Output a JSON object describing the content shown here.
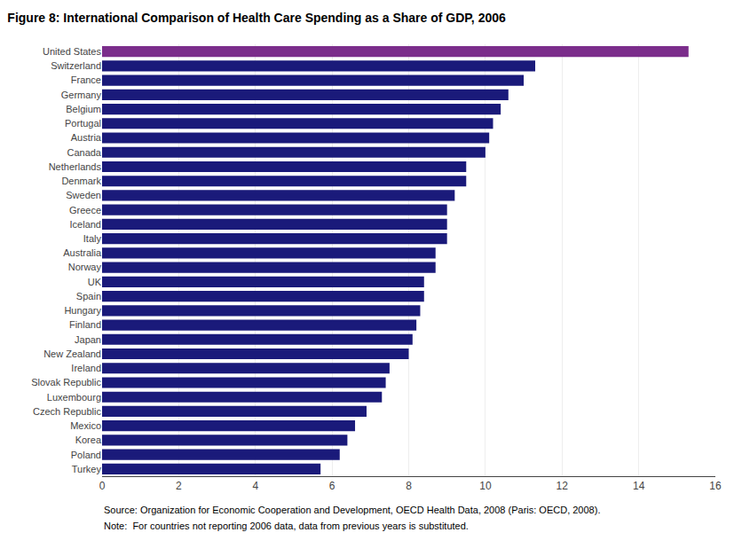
{
  "chart_data": {
    "type": "bar",
    "orientation": "horizontal",
    "title": "Figure 8: International Comparison of Health Care Spending as a Share of GDP, 2006",
    "categories": [
      "United States",
      "Switzerland",
      "France",
      "Germany",
      "Belgium",
      "Portugal",
      "Austria",
      "Canada",
      "Netherlands",
      "Denmark",
      "Sweden",
      "Greece",
      "Iceland",
      "Italy",
      "Australia",
      "Norway",
      "UK",
      "Spain",
      "Hungary",
      "Finland",
      "Japan",
      "New Zealand",
      "Ireland",
      "Slovak Republic",
      "Luxembourg",
      "Czech Republic",
      "Mexico",
      "Korea",
      "Poland",
      "Turkey"
    ],
    "values": [
      15.3,
      11.3,
      11.0,
      10.6,
      10.4,
      10.2,
      10.1,
      10.0,
      9.5,
      9.5,
      9.2,
      9.0,
      9.0,
      9.0,
      8.7,
      8.7,
      8.4,
      8.4,
      8.3,
      8.2,
      8.1,
      8.0,
      7.5,
      7.4,
      7.3,
      6.9,
      6.6,
      6.4,
      6.2,
      5.7
    ],
    "colors": [
      "#7B2D8B",
      "#1a1a7a",
      "#1a1a7a",
      "#1a1a7a",
      "#1a1a7a",
      "#1a1a7a",
      "#1a1a7a",
      "#1a1a7a",
      "#1a1a7a",
      "#1a1a7a",
      "#1a1a7a",
      "#1a1a7a",
      "#1a1a7a",
      "#1a1a7a",
      "#1a1a7a",
      "#1a1a7a",
      "#1a1a7a",
      "#1a1a7a",
      "#1a1a7a",
      "#1a1a7a",
      "#1a1a7a",
      "#1a1a7a",
      "#1a1a7a",
      "#1a1a7a",
      "#1a1a7a",
      "#1a1a7a",
      "#1a1a7a",
      "#1a1a7a",
      "#1a1a7a",
      "#1a1a7a"
    ],
    "xlim": [
      0,
      16
    ],
    "xticks": [
      0,
      2,
      4,
      6,
      8,
      10,
      12,
      14,
      16
    ],
    "grid": true,
    "annotations": [
      "Source: Organization for Economic Cooperation and Development, OECD Health Data, 2008 (Paris: OECD, 2008).",
      "Note:  For countries not reporting 2006 data, data from previous years is substituted."
    ]
  }
}
